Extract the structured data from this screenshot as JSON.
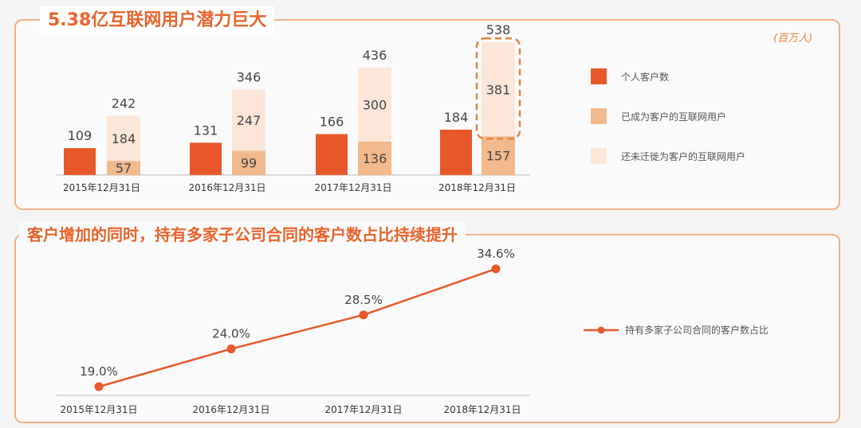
{
  "colors": {
    "customers": "#e8582a",
    "converted": "#f2b98c",
    "unconverted": "#fbe6d8",
    "line": "#e8582a"
  },
  "chart_data": [
    {
      "type": "bar",
      "title": "5.38亿互联网用户潜力巨大",
      "unit": "(百万人)",
      "categories": [
        "2015年12月31日",
        "2016年12月31日",
        "2017年12月31日",
        "2018年12月31日"
      ],
      "series": [
        {
          "name": "个人客户数",
          "values": [
            109,
            131,
            166,
            184
          ]
        },
        {
          "name": "已成为客户的互联网用户",
          "values": [
            57,
            99,
            136,
            157
          ]
        },
        {
          "name": "还未迁徙为客户的互联网用户",
          "values": [
            184,
            247,
            300,
            381
          ]
        }
      ],
      "totals": [
        242,
        346,
        436,
        538
      ],
      "highlight": "2018年12月31日"
    },
    {
      "type": "line",
      "title": "客户增加的同时，持有多家子公司合同的客户数占比持续提升",
      "categories": [
        "2015年12月31日",
        "2016年12月31日",
        "2017年12月31日",
        "2018年12月31日"
      ],
      "series": [
        {
          "name": "持有多家子公司合同的客户数占比",
          "values": [
            19.0,
            24.0,
            28.5,
            34.6
          ],
          "labels": [
            "19.0%",
            "24.0%",
            "28.5%",
            "34.6%"
          ]
        }
      ]
    }
  ]
}
